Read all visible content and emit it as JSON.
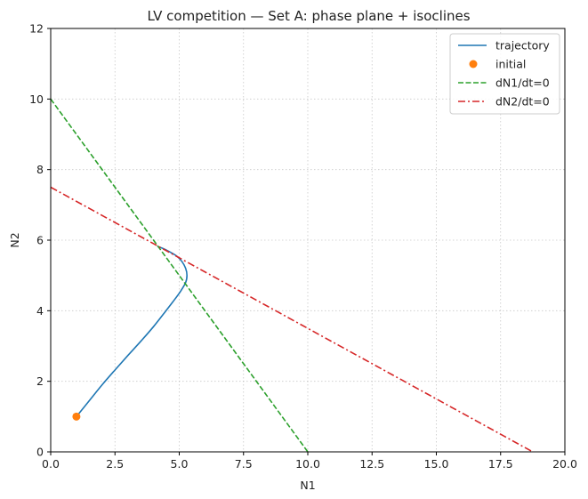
{
  "chart_data": {
    "type": "line",
    "title": "LV competition — Set A: phase plane + isoclines",
    "xlabel": "N1",
    "ylabel": "N2",
    "xlim": [
      0,
      20
    ],
    "ylim": [
      0,
      12
    ],
    "xticks": [
      0.0,
      2.5,
      5.0,
      7.5,
      10.0,
      12.5,
      15.0,
      17.5,
      20.0
    ],
    "xtick_labels": [
      "0.0",
      "2.5",
      "5.0",
      "7.5",
      "10.0",
      "12.5",
      "15.0",
      "17.5",
      "20.0"
    ],
    "yticks": [
      0,
      2,
      4,
      6,
      8,
      10,
      12
    ],
    "ytick_labels": [
      "0",
      "2",
      "4",
      "6",
      "8",
      "10",
      "12"
    ],
    "grid": true,
    "legend_position": "top-right",
    "series": [
      {
        "name": "trajectory",
        "style": "solid",
        "color": "#1f77b4",
        "x": [
          1.0,
          1.5,
          2.0,
          2.5,
          3.0,
          3.5,
          4.0,
          4.4,
          4.75,
          5.05,
          5.25,
          5.3,
          5.25,
          5.1,
          4.9,
          4.6,
          4.35,
          4.15
        ],
        "y": [
          1.0,
          1.45,
          1.9,
          2.32,
          2.73,
          3.13,
          3.55,
          3.92,
          4.25,
          4.55,
          4.8,
          5.0,
          5.2,
          5.4,
          5.55,
          5.68,
          5.77,
          5.82
        ]
      },
      {
        "name": "initial",
        "style": "marker",
        "color": "#ff7f0e",
        "x": [
          1.0
        ],
        "y": [
          1.0
        ]
      },
      {
        "name": "dN1/dt=0",
        "style": "dashed",
        "color": "#2ca02c",
        "x": [
          0.0,
          10.0
        ],
        "y": [
          10.0,
          0.0
        ]
      },
      {
        "name": "dN2/dt=0",
        "style": "dashdot",
        "color": "#d62728",
        "x": [
          0.0,
          18.75
        ],
        "y": [
          7.5,
          0.0
        ]
      }
    ]
  }
}
